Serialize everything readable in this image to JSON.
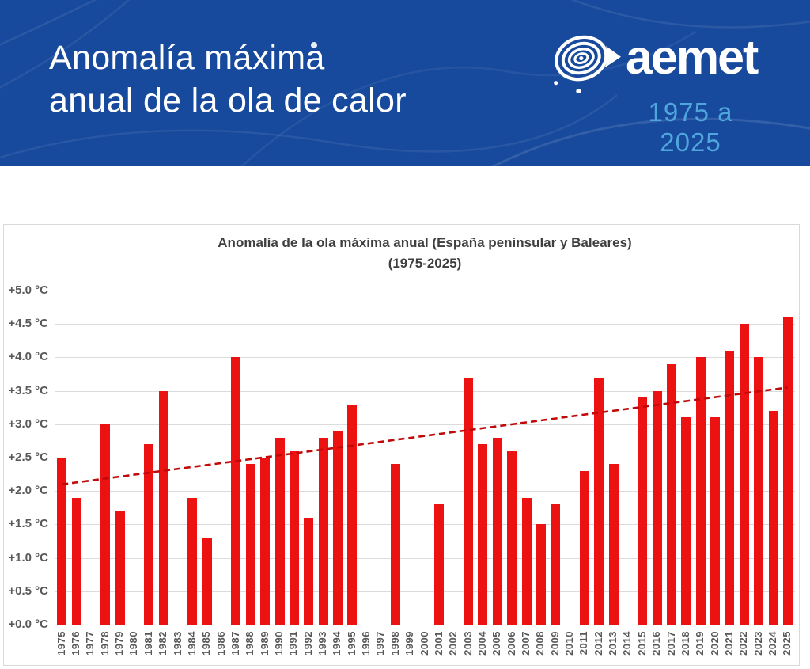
{
  "header": {
    "title_line1": "Anomalía máxima",
    "title_line2": "anual de la ola de calor",
    "brand_name": "aemet",
    "range_label": "1975 a 2025",
    "colors": {
      "background": "#17499C",
      "title": "#FFFFFF",
      "range": "#4FA6DD"
    }
  },
  "chart_data": {
    "type": "bar",
    "title_line1": "Anomalía de la ola máxima anual (España peninsular y Baleares)",
    "title_line2": "(1975-2025)",
    "categories": [
      "1975",
      "1976",
      "1977",
      "1978",
      "1979",
      "1980",
      "1981",
      "1982",
      "1983",
      "1984",
      "1985",
      "1986",
      "1987",
      "1988",
      "1989",
      "1990",
      "1991",
      "1992",
      "1993",
      "1994",
      "1995",
      "1996",
      "1997",
      "1998",
      "1999",
      "2000",
      "2001",
      "2002",
      "2003",
      "2004",
      "2005",
      "2006",
      "2007",
      "2008",
      "2009",
      "2010",
      "2011",
      "2012",
      "2013",
      "2014",
      "2015",
      "2016",
      "2017",
      "2018",
      "2019",
      "2020",
      "2021",
      "2022",
      "2023",
      "2024",
      "2025"
    ],
    "values": [
      2.5,
      1.9,
      null,
      3.0,
      1.7,
      null,
      2.7,
      3.5,
      null,
      1.9,
      1.3,
      null,
      4.0,
      2.4,
      2.5,
      2.8,
      2.6,
      1.6,
      2.8,
      2.9,
      3.3,
      null,
      null,
      2.4,
      null,
      null,
      1.8,
      null,
      3.7,
      2.7,
      2.8,
      2.6,
      1.9,
      1.5,
      1.8,
      null,
      2.3,
      3.7,
      2.4,
      null,
      3.4,
      3.5,
      3.9,
      3.1,
      4.0,
      3.1,
      4.1,
      4.5,
      4.0,
      3.2,
      4.6
    ],
    "ylim": [
      0,
      5
    ],
    "ytick_step": 0.5,
    "ytick_labels": [
      "+0.0 °C",
      "+0.5 °C",
      "+1.0 °C",
      "+1.5 °C",
      "+2.0 °C",
      "+2.5 °C",
      "+3.0 °C",
      "+3.5 °C",
      "+4.0 °C",
      "+4.5 °C",
      "+5.0 °C"
    ],
    "grid": true,
    "legend": false,
    "trendline": {
      "style": "dashed",
      "color": "#C00909",
      "start_value": 2.1,
      "end_value": 3.55
    },
    "bar_color": "#EC1212",
    "grid_color": "#DCDCDC",
    "axis_line_color": "#CFCFCF",
    "tick_label_color": "#595959",
    "title_color": "#3F3F3F"
  }
}
